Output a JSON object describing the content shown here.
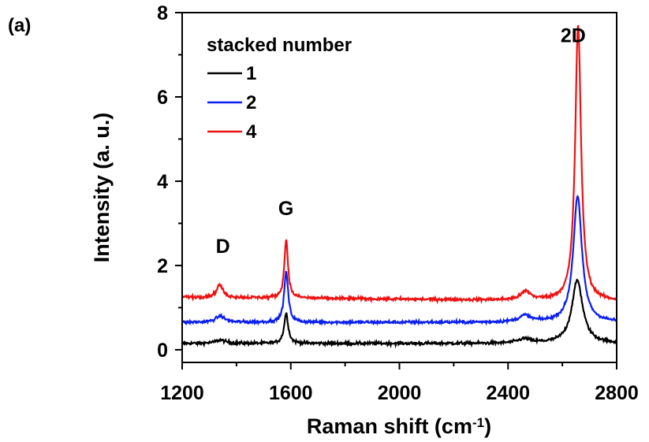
{
  "panel_label": "(a)",
  "chart_data": {
    "type": "line",
    "title": "",
    "xlabel": "Raman shift (cm",
    "xlabel_superscript": "-1",
    "xlabel_suffix": ")",
    "ylabel": "Intensity (a. u.)",
    "xlim": [
      1200,
      2800
    ],
    "ylim": [
      -0.3,
      8.0
    ],
    "xticks": [
      1200,
      1600,
      2000,
      2400,
      2800
    ],
    "yticks": [
      0,
      2,
      4,
      6,
      8
    ],
    "grid": false,
    "legend": {
      "title": "stacked number",
      "position": "top-left"
    },
    "peak_labels": [
      {
        "text": "D",
        "x": 1350,
        "y": 2.3
      },
      {
        "text": "G",
        "x": 1582,
        "y": 3.2
      },
      {
        "text": "2D",
        "x": 2640,
        "y": 7.3
      }
    ],
    "series": [
      {
        "name": "1",
        "color": "#000000",
        "baseline": 0.15,
        "baseline_end": 0.15,
        "noise": 0.035,
        "peaks": [
          {
            "center": 1340,
            "height": 0.08,
            "width": 22
          },
          {
            "center": 1583,
            "height": 0.72,
            "width": 9
          },
          {
            "center": 2460,
            "height": 0.1,
            "width": 28
          },
          {
            "center": 2655,
            "height": 1.5,
            "width": 24
          }
        ]
      },
      {
        "name": "2",
        "color": "#0a1ef0",
        "baseline": 0.65,
        "baseline_end": 0.65,
        "noise": 0.035,
        "peaks": [
          {
            "center": 1340,
            "height": 0.15,
            "width": 20
          },
          {
            "center": 1583,
            "height": 1.2,
            "width": 9
          },
          {
            "center": 2462,
            "height": 0.15,
            "width": 26
          },
          {
            "center": 2656,
            "height": 3.0,
            "width": 19
          }
        ]
      },
      {
        "name": "4",
        "color": "#ee1111",
        "baseline": 1.25,
        "baseline_end": 1.15,
        "noise": 0.035,
        "peaks": [
          {
            "center": 1338,
            "height": 0.3,
            "width": 14
          },
          {
            "center": 1583,
            "height": 1.4,
            "width": 8
          },
          {
            "center": 2465,
            "height": 0.2,
            "width": 22
          },
          {
            "center": 2658,
            "height": 6.55,
            "width": 13
          }
        ]
      }
    ]
  }
}
